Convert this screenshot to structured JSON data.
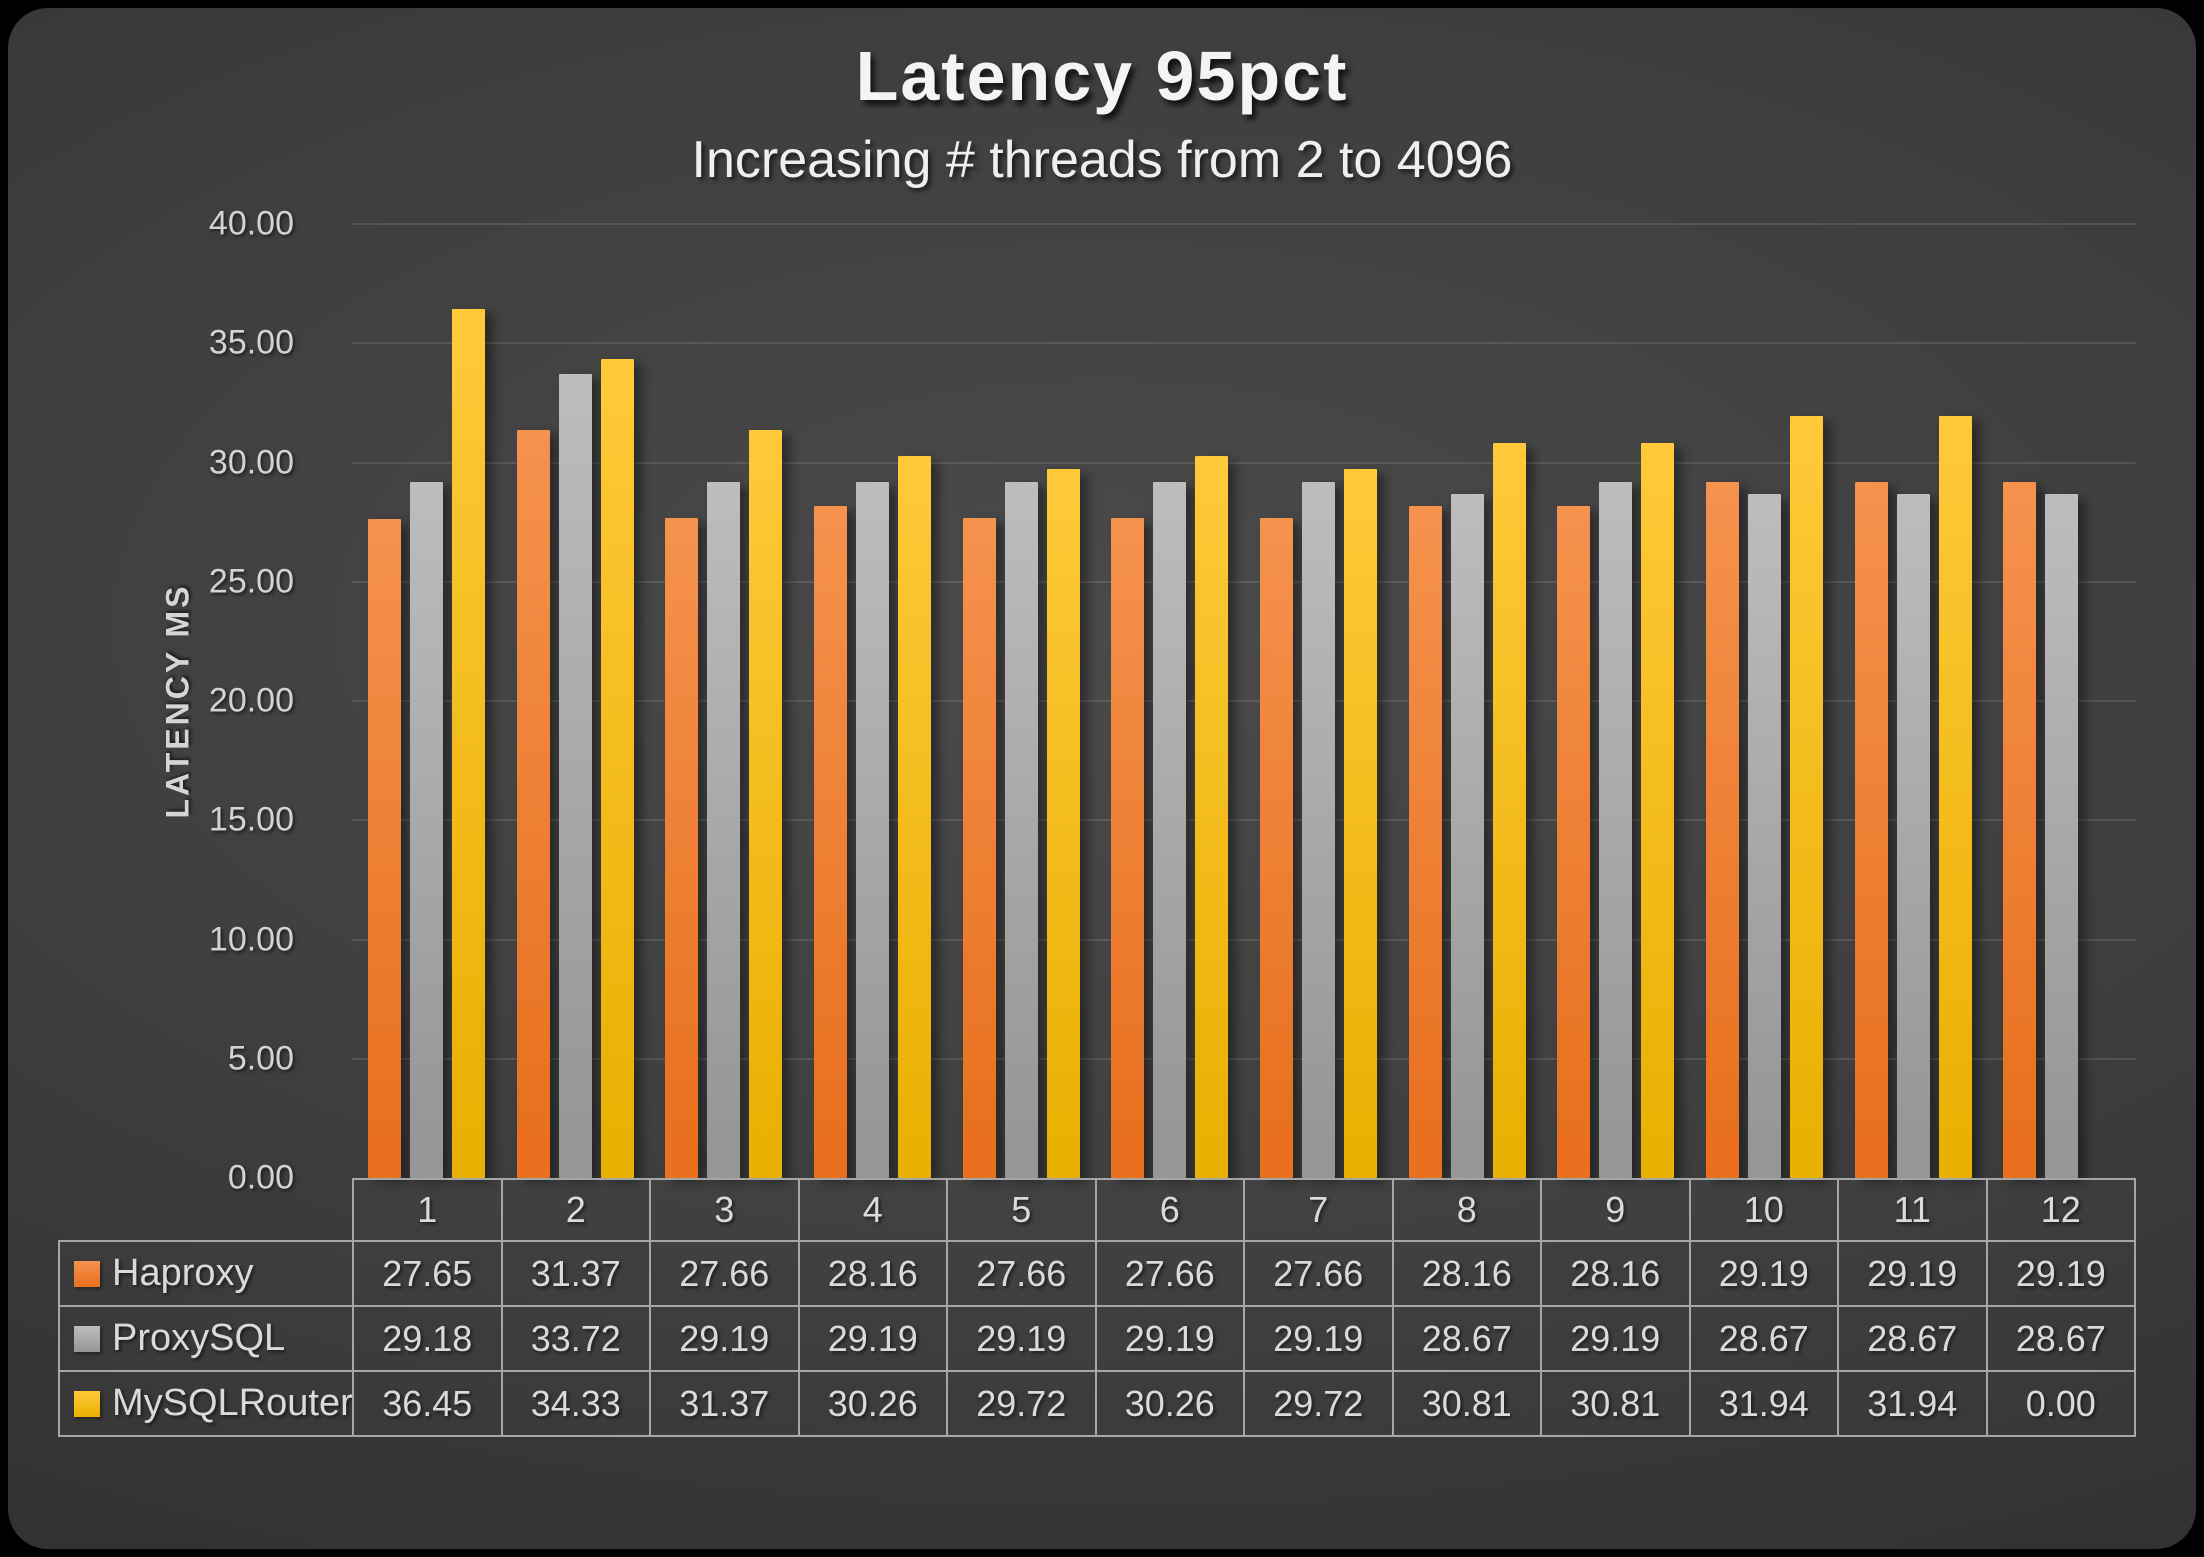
{
  "slide": {
    "title": "Latency 95pct",
    "subtitle": "Increasing # threads from 2 to 4096"
  },
  "colors": {
    "outer_background": "#000000",
    "slide_background": "#3E3E3E",
    "gridline": "#545454",
    "text": "#DADADA",
    "table_border": "#A6A6A6"
  },
  "chart_data": {
    "type": "bar",
    "title": "Latency 95pct",
    "subtitle": "Increasing # threads from 2 to 4096",
    "xlabel": "",
    "ylabel": "LATENCY MS",
    "ylim": [
      0,
      40
    ],
    "ytick_step": 5,
    "yticks": [
      "0.00",
      "5.00",
      "10.00",
      "15.00",
      "20.00",
      "25.00",
      "30.00",
      "35.00",
      "40.00"
    ],
    "grid": true,
    "legend_position": "table-left",
    "categories": [
      "1",
      "2",
      "3",
      "4",
      "5",
      "6",
      "7",
      "8",
      "9",
      "10",
      "11",
      "12"
    ],
    "series": [
      {
        "name": "Haproxy",
        "color": "#E8701E",
        "color_light": "#F5924E",
        "values": [
          27.65,
          31.37,
          27.66,
          28.16,
          27.66,
          27.66,
          27.66,
          28.16,
          28.16,
          29.19,
          29.19,
          29.19
        ]
      },
      {
        "name": "ProxySQL",
        "color": "#969696",
        "color_light": "#BDBDBD",
        "values": [
          29.18,
          33.72,
          29.19,
          29.19,
          29.19,
          29.19,
          29.19,
          28.67,
          29.19,
          28.67,
          28.67,
          28.67
        ]
      },
      {
        "name": "MySQLRouter",
        "color": "#E9B103",
        "color_light": "#FFC93A",
        "values": [
          36.45,
          34.33,
          31.37,
          30.26,
          29.72,
          30.26,
          29.72,
          30.81,
          30.81,
          31.94,
          31.94,
          0.0
        ]
      }
    ]
  }
}
